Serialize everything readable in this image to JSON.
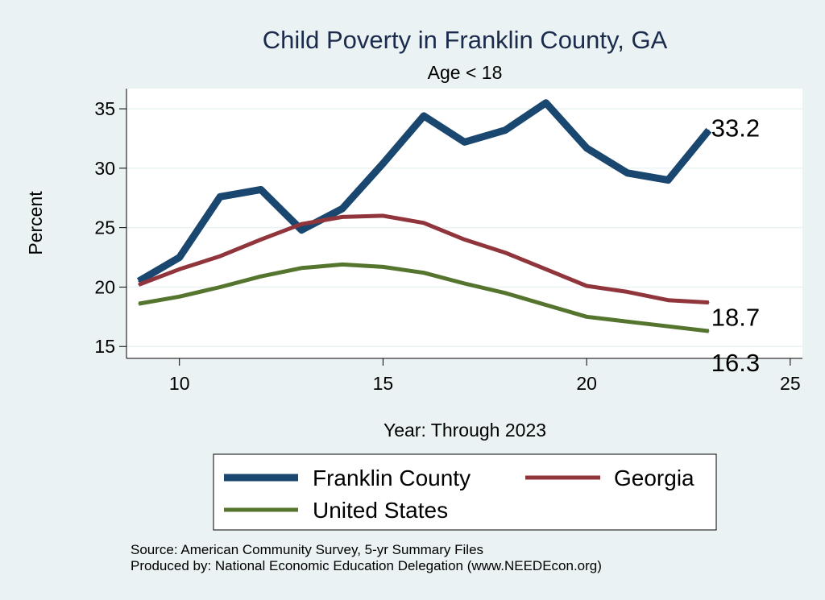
{
  "chart_data": {
    "type": "line",
    "title": "Child Poverty in Franklin County, GA",
    "subtitle": "Age < 18",
    "xlabel": "Year: Through 2023",
    "ylabel": "Percent",
    "xlim": [
      8.7,
      25.3
    ],
    "ylim": [
      14.0,
      36.7
    ],
    "xticks": [
      10,
      15,
      20,
      25
    ],
    "yticks": [
      15,
      20,
      25,
      30,
      35
    ],
    "grid": true,
    "legend_position": "bottom",
    "x": [
      9,
      10,
      11,
      12,
      13,
      14,
      15,
      16,
      17,
      18,
      19,
      20,
      21,
      22,
      23
    ],
    "series": [
      {
        "name": "Franklin County",
        "color": "#1a476f",
        "width": 9,
        "values": [
          20.5,
          22.5,
          27.6,
          28.2,
          24.8,
          26.6,
          30.4,
          34.4,
          32.2,
          33.2,
          35.5,
          31.7,
          29.6,
          29.0,
          33.2
        ],
        "end_label": "33.2"
      },
      {
        "name": "Georgia",
        "color": "#90353b",
        "width": 5,
        "values": [
          20.2,
          21.5,
          22.6,
          24.0,
          25.3,
          25.9,
          26.0,
          25.4,
          24.0,
          22.9,
          21.5,
          20.1,
          19.6,
          18.9,
          18.7
        ],
        "end_label": "18.7"
      },
      {
        "name": "United States",
        "color": "#55752f",
        "width": 5,
        "values": [
          18.6,
          19.2,
          20.0,
          20.9,
          21.6,
          21.9,
          21.7,
          21.2,
          20.3,
          19.5,
          18.5,
          17.5,
          17.1,
          16.7,
          16.3
        ],
        "end_label": "16.3"
      }
    ]
  },
  "notes": {
    "source": "Source: American Community Survey, 5-yr Summary Files",
    "produced_by": "Produced by: National Economic Education Delegation (www.NEEDEcon.org)"
  }
}
